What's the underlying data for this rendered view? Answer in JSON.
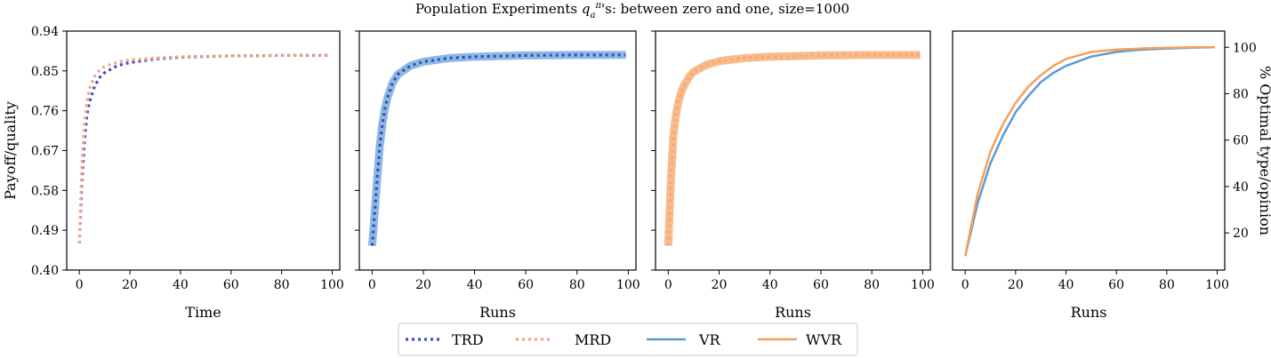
{
  "title": "Population Experiments q_a^π's: between zero and one, size=1000",
  "title_parts": {
    "pre": "Population Experiments ",
    "q": "q",
    "sub": "a",
    "sup": "π",
    "post": "'s: between zero and one, size=1000"
  },
  "colors": {
    "trd": "#3b4cc0",
    "mrd": "#f4a582",
    "vr": "#5b9bd5",
    "wvr": "#f5a05a"
  },
  "legend": {
    "items": [
      "TRD",
      "MRD",
      "VR",
      "WVR"
    ]
  },
  "chart_data": [
    {
      "type": "line",
      "xlabel": "Time",
      "ylabel": "Payoff/quality",
      "xlim": [
        -5,
        103
      ],
      "ylim": [
        0.4,
        0.94
      ],
      "xticks": [
        0,
        20,
        40,
        60,
        80,
        100
      ],
      "yticks": [
        "0.40",
        "0.49",
        "0.58",
        "0.67",
        "0.76",
        "0.85",
        "0.94"
      ],
      "series": [
        {
          "name": "TRD",
          "style": "dotted",
          "x": [
            0,
            1,
            2,
            3,
            4,
            6,
            8,
            10,
            15,
            20,
            30,
            40,
            60,
            80,
            99
          ],
          "y": [
            0.46,
            0.6,
            0.69,
            0.75,
            0.78,
            0.815,
            0.835,
            0.846,
            0.862,
            0.869,
            0.877,
            0.881,
            0.884,
            0.885,
            0.885
          ]
        },
        {
          "name": "MRD",
          "style": "dotted",
          "x": [
            0,
            1,
            2,
            3,
            4,
            6,
            8,
            10,
            15,
            20,
            30,
            40,
            60,
            80,
            99
          ],
          "y": [
            0.46,
            0.64,
            0.73,
            0.78,
            0.81,
            0.838,
            0.852,
            0.86,
            0.87,
            0.875,
            0.879,
            0.882,
            0.884,
            0.885,
            0.885
          ]
        }
      ]
    },
    {
      "type": "line",
      "xlabel": "Runs",
      "xlim": [
        -5,
        103
      ],
      "ylim": [
        0.4,
        0.94
      ],
      "xticks": [
        0,
        20,
        40,
        60,
        80,
        100
      ],
      "series": [
        {
          "name": "VR",
          "style": "band",
          "x": [
            0,
            1,
            2,
            3,
            4,
            5,
            6,
            8,
            10,
            15,
            20,
            30,
            40,
            60,
            80,
            99
          ],
          "y": [
            0.455,
            0.53,
            0.61,
            0.68,
            0.73,
            0.765,
            0.79,
            0.823,
            0.842,
            0.862,
            0.871,
            0.879,
            0.882,
            0.885,
            0.886,
            0.886
          ]
        },
        {
          "name": "TRD",
          "style": "dotted",
          "x": [
            0,
            1,
            2,
            3,
            4,
            5,
            6,
            8,
            10,
            15,
            20,
            30,
            40,
            60,
            80,
            99
          ],
          "y": [
            0.455,
            0.53,
            0.61,
            0.68,
            0.73,
            0.765,
            0.79,
            0.823,
            0.842,
            0.862,
            0.871,
            0.879,
            0.882,
            0.885,
            0.886,
            0.886
          ]
        }
      ]
    },
    {
      "type": "line",
      "xlabel": "Runs",
      "xlim": [
        -5,
        103
      ],
      "ylim": [
        0.4,
        0.94
      ],
      "xticks": [
        0,
        20,
        40,
        60,
        80,
        100
      ],
      "series": [
        {
          "name": "WVR",
          "style": "band",
          "x": [
            0,
            1,
            2,
            3,
            4,
            5,
            6,
            8,
            10,
            15,
            20,
            30,
            40,
            60,
            80,
            99
          ],
          "y": [
            0.455,
            0.6,
            0.7,
            0.75,
            0.78,
            0.8,
            0.815,
            0.835,
            0.848,
            0.864,
            0.872,
            0.879,
            0.882,
            0.885,
            0.886,
            0.886
          ]
        },
        {
          "name": "MRD",
          "style": "dotted",
          "x": [
            0,
            1,
            2,
            3,
            4,
            5,
            6,
            8,
            10,
            15,
            20,
            30,
            40,
            60,
            80,
            99
          ],
          "y": [
            0.455,
            0.6,
            0.7,
            0.75,
            0.78,
            0.8,
            0.815,
            0.835,
            0.848,
            0.864,
            0.872,
            0.879,
            0.882,
            0.885,
            0.886,
            0.886
          ]
        }
      ]
    },
    {
      "type": "line",
      "xlabel": "Runs",
      "ylabel": "% Optimal type/opinion",
      "ylabel_side": "right",
      "xlim": [
        -5,
        103
      ],
      "ylim": [
        4,
        107
      ],
      "xticks": [
        0,
        20,
        40,
        60,
        80,
        100
      ],
      "yticks": [
        "20",
        "40",
        "60",
        "80",
        "100"
      ],
      "series": [
        {
          "name": "VR",
          "style": "solid",
          "x": [
            0,
            5,
            10,
            15,
            20,
            25,
            30,
            35,
            40,
            50,
            60,
            70,
            80,
            90,
            99
          ],
          "y": [
            10,
            33,
            50,
            62,
            72,
            79,
            85,
            89,
            92,
            96,
            98,
            99,
            99.5,
            99.8,
            100
          ]
        },
        {
          "name": "WVR",
          "style": "solid",
          "x": [
            0,
            5,
            10,
            15,
            20,
            25,
            30,
            35,
            40,
            50,
            60,
            70,
            80,
            90,
            99
          ],
          "y": [
            10,
            37,
            55,
            67,
            76,
            83,
            88,
            92,
            95,
            98,
            99,
            99.5,
            99.8,
            100,
            100
          ]
        }
      ]
    }
  ]
}
